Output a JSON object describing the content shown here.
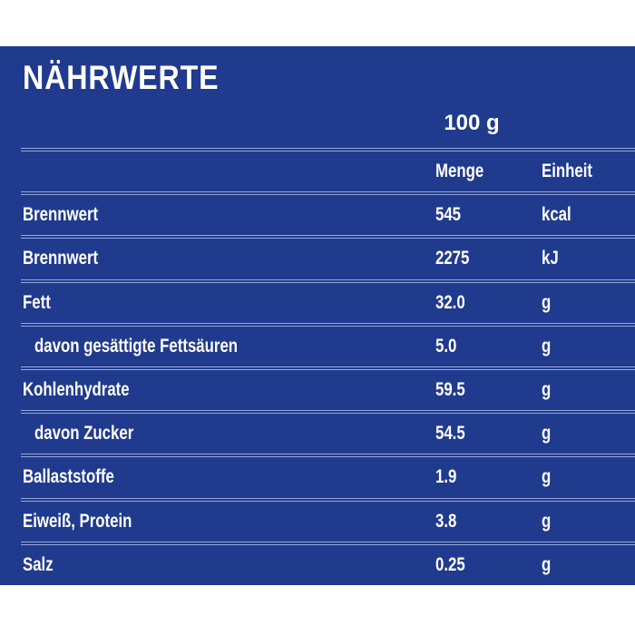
{
  "colors": {
    "page_background": "#ffffff",
    "panel_background": "#203a8e",
    "separator": "#96a9d9",
    "text": "#ffffff"
  },
  "panel": {
    "title": "NÄHRWERTE",
    "amount_header": "100 g"
  },
  "table": {
    "columns": {
      "value": "Menge",
      "unit": "Einheit"
    },
    "rows": [
      {
        "label": "Brennwert",
        "value": "545",
        "unit": "kcal",
        "indent": false
      },
      {
        "label": "Brennwert",
        "value": "2275",
        "unit": "kJ",
        "indent": false
      },
      {
        "label": "Fett",
        "value": "32.0",
        "unit": "g",
        "indent": false
      },
      {
        "label": "davon gesättigte Fettsäuren",
        "value": "5.0",
        "unit": "g",
        "indent": true
      },
      {
        "label": "Kohlenhydrate",
        "value": "59.5",
        "unit": "g",
        "indent": false
      },
      {
        "label": "davon Zucker",
        "value": "54.5",
        "unit": "g",
        "indent": true
      },
      {
        "label": "Ballaststoffe",
        "value": "1.9",
        "unit": "g",
        "indent": false
      },
      {
        "label": "Eiweiß, Protein",
        "value": "3.8",
        "unit": "g",
        "indent": false
      },
      {
        "label": "Salz",
        "value": "0.25",
        "unit": "g",
        "indent": false
      }
    ]
  }
}
